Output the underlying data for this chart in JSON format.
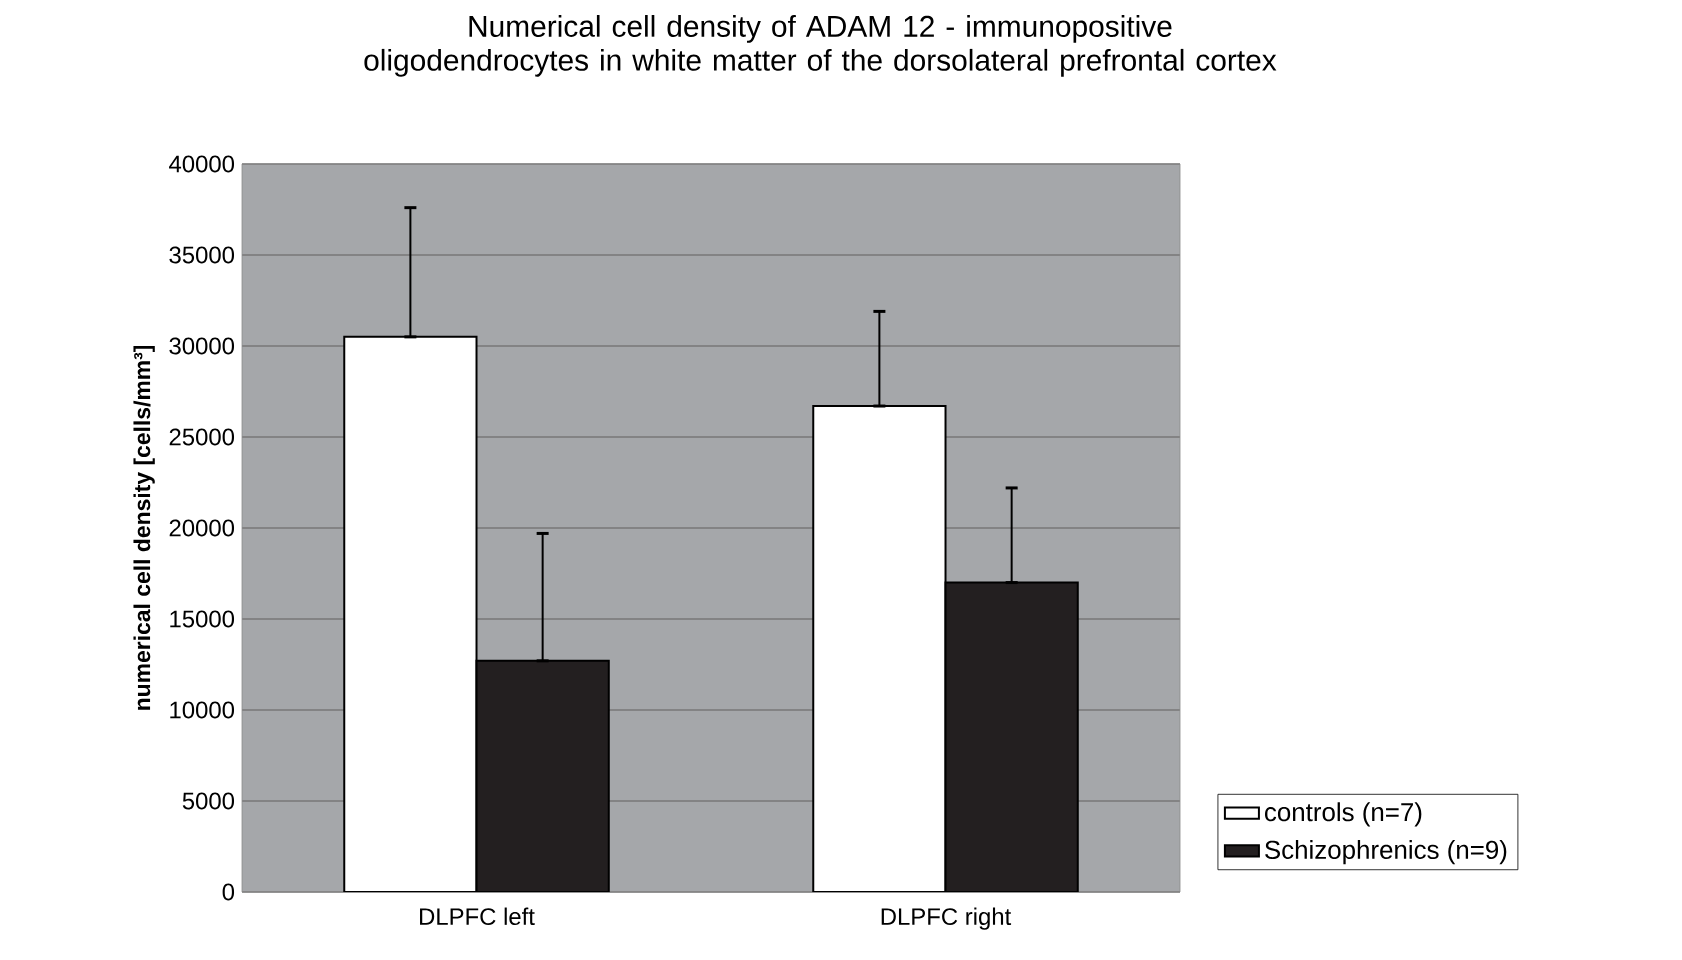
{
  "chart_data": {
    "type": "bar",
    "title": "Numerical cell density of ADAM 12 - immunopositive oligodendrocytes in white matter of the dorsolateral prefrontal cortex",
    "ylabel": "numerical cell density [cells/mm³]",
    "categories": [
      "DLPFC left",
      "DLPFC right"
    ],
    "series": [
      {
        "name": "controls (n=7)",
        "color": "#ffffff",
        "values": [
          30500,
          26700
        ],
        "errors": [
          [
            30500,
            37600
          ],
          [
            26700,
            31900
          ]
        ]
      },
      {
        "name": "Schizophrenics (n=9)",
        "color": "#231f20",
        "values": [
          12700,
          17000
        ],
        "errors": [
          [
            12700,
            19700
          ],
          [
            17000,
            22200
          ]
        ]
      }
    ],
    "ylim": [
      0,
      40000
    ],
    "yticks": [
      0,
      5000,
      10000,
      15000,
      20000,
      25000,
      30000,
      35000,
      40000
    ],
    "grid": "y",
    "legend": "right"
  }
}
